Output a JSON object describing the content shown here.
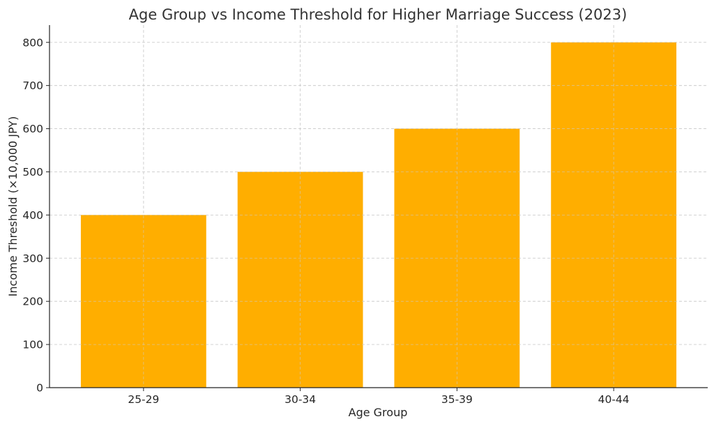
{
  "chart_data": {
    "type": "bar",
    "title": "Age Group vs Income Threshold for Higher Marriage Success (2023)",
    "xlabel": "Age Group",
    "ylabel": "Income Threshold (×10,000 JPY)",
    "categories": [
      "25-29",
      "30-34",
      "35-39",
      "40-44"
    ],
    "values": [
      400,
      500,
      600,
      800
    ],
    "ylim": [
      0,
      840
    ],
    "yticks": [
      0,
      100,
      200,
      300,
      400,
      500,
      600,
      700,
      800
    ],
    "grid": true,
    "bar_color": "#FFAE00"
  }
}
